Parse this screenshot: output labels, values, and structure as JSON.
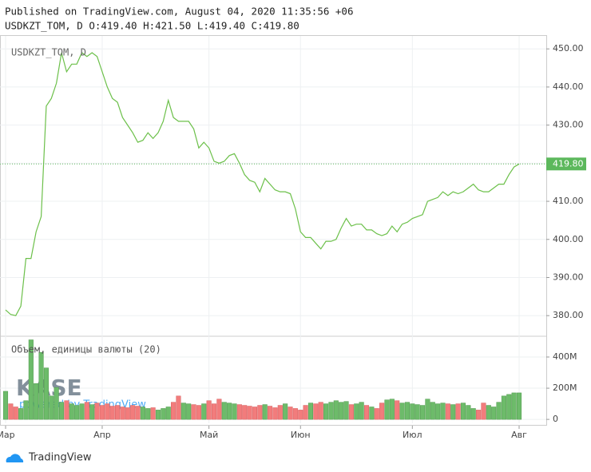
{
  "chart_data": {
    "type": "line",
    "header": "Published on TradingView.com, August 04, 2020 11:35:56 +06",
    "ohlc": "USDKZT_TOM, D O:419.40 H:421.50 L:419.40 C:419.80",
    "legend": "USDKZT_TOM, D",
    "volume_title": "Объем, единицы валюты (20)",
    "watermark": {
      "logo": "KASE",
      "tagline": "powered by TradingView"
    },
    "footer": "TradingView",
    "last_price": {
      "value": 419.8,
      "label": "419.80",
      "color": "#5cb85c"
    },
    "categories": [
      "Мар",
      null,
      null,
      null,
      null,
      null,
      null,
      null,
      null,
      null,
      null,
      null,
      null,
      null,
      null,
      null,
      null,
      null,
      null,
      "Апр",
      null,
      null,
      null,
      null,
      null,
      null,
      null,
      null,
      null,
      null,
      null,
      null,
      null,
      null,
      null,
      null,
      null,
      null,
      null,
      null,
      "Май",
      null,
      null,
      null,
      null,
      null,
      null,
      null,
      null,
      null,
      null,
      null,
      null,
      null,
      null,
      null,
      null,
      null,
      "Июн",
      null,
      null,
      null,
      null,
      null,
      null,
      null,
      null,
      null,
      null,
      null,
      null,
      null,
      null,
      null,
      null,
      null,
      null,
      null,
      null,
      null,
      "Июл",
      null,
      null,
      null,
      null,
      null,
      null,
      null,
      null,
      null,
      null,
      null,
      null,
      null,
      null,
      null,
      null,
      null,
      null,
      null,
      null,
      "Авг"
    ],
    "series": [
      {
        "name": "USDKZT_TOM",
        "color": "#6cc04a",
        "values": [
          381.5,
          380.3,
          380,
          382.5,
          395,
          395,
          402,
          406,
          435,
          437,
          441,
          449,
          444,
          446,
          446,
          449,
          448,
          449,
          448,
          444,
          440,
          437,
          436,
          432,
          430,
          428,
          425.5,
          426,
          428,
          426.5,
          428,
          431,
          436.5,
          432,
          431,
          431,
          431,
          429,
          424,
          425.5,
          424,
          420.5,
          420,
          420.5,
          422,
          422.5,
          420,
          417,
          415.5,
          415,
          412.5,
          416,
          414.5,
          413,
          412.5,
          412.5,
          412,
          408,
          402,
          400.5,
          400.5,
          399,
          397.5,
          399.5,
          399.5,
          400,
          403,
          405.5,
          403.5,
          404,
          404,
          402.5,
          402.5,
          401.5,
          401,
          401.5,
          403.5,
          402,
          404,
          404.5,
          405.5,
          406,
          406.5,
          410,
          410.5,
          411,
          412.5,
          411.5,
          412.5,
          412,
          412.5,
          413.5,
          414.5,
          413,
          412.5,
          412.5,
          413.5,
          414.5,
          414.5,
          417,
          419,
          419.8
        ]
      },
      {
        "name": "Объем",
        "axis": "y2",
        "up_color": "#6dbb6a",
        "down_color": "#f27c7c",
        "values": [
          180,
          100,
          80,
          70,
          120,
          510,
          230,
          430,
          330,
          150,
          205,
          110,
          120,
          100,
          90,
          100,
          110,
          95,
          105,
          90,
          100,
          85,
          90,
          80,
          75,
          90,
          85,
          80,
          70,
          75,
          60,
          70,
          80,
          110,
          150,
          105,
          100,
          95,
          90,
          100,
          120,
          100,
          130,
          110,
          105,
          100,
          95,
          90,
          85,
          80,
          90,
          95,
          85,
          75,
          90,
          100,
          80,
          70,
          60,
          90,
          105,
          100,
          110,
          100,
          110,
          120,
          110,
          115,
          95,
          100,
          110,
          90,
          80,
          70,
          105,
          125,
          130,
          120,
          105,
          110,
          100,
          95,
          90,
          130,
          110,
          100,
          105,
          100,
          95,
          100,
          105,
          90,
          70,
          60,
          105,
          90,
          80,
          110,
          150,
          160,
          170,
          170
        ]
      }
    ],
    "ylim": [
      374.8,
      453.4
    ],
    "yticks": [
      {
        "value": 380,
        "label": "380.00"
      },
      {
        "value": 390,
        "label": "390.00"
      },
      {
        "value": 400,
        "label": "400.00"
      },
      {
        "value": 410,
        "label": "410.00"
      },
      {
        "value": 420,
        "label": "420.00"
      },
      {
        "value": 430,
        "label": "430.00"
      },
      {
        "value": 440,
        "label": "440.00"
      },
      {
        "value": 450,
        "label": "450.00"
      }
    ],
    "y2lim": [
      -25,
      528
    ],
    "y2ticks": [
      0,
      {
        "value": 200,
        "label": "200M"
      },
      {
        "value": 400,
        "label": "400M"
      }
    ],
    "grid": true
  }
}
